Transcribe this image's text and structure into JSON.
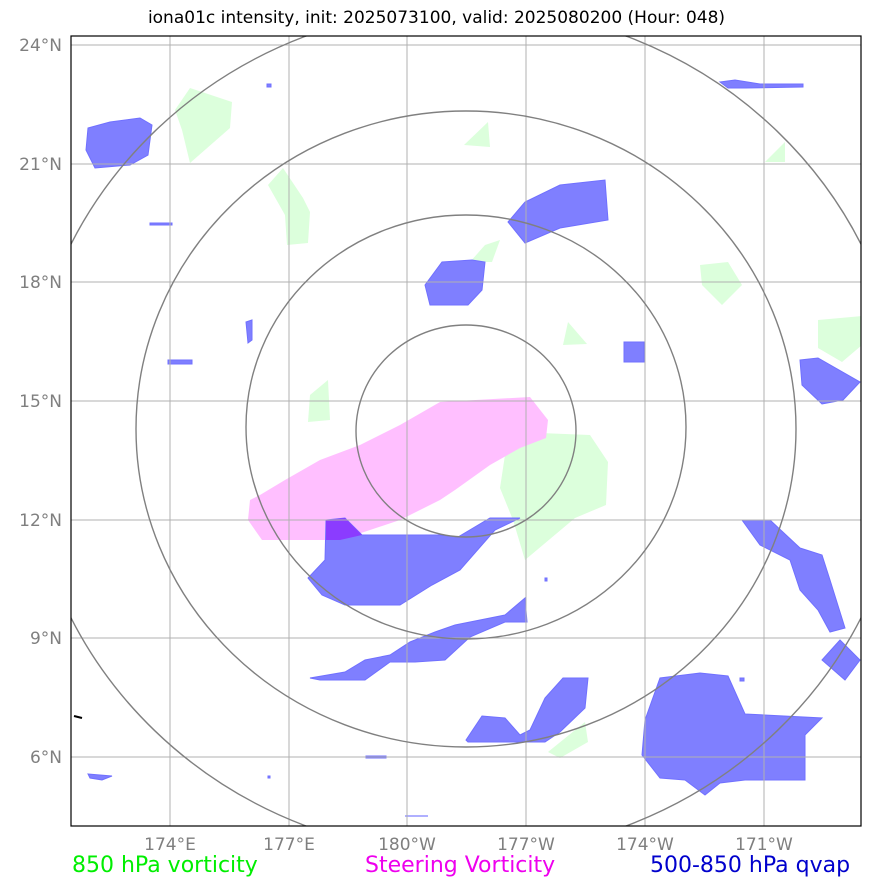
{
  "title": "iona01c intensity, init: 2025073100, valid: 2025080200 (Hour: 048)",
  "y_ticks": [
    "24°N",
    "21°N",
    "18°N",
    "15°N",
    "12°N",
    "9°N",
    "6°N"
  ],
  "x_ticks": [
    "174°E",
    "177°E",
    "180°W",
    "177°W",
    "174°W",
    "171°W"
  ],
  "legend": {
    "vort850": "850 hPa vorticity",
    "steering": "Steering Vorticity",
    "qvap": "500-850 hPa qvap"
  },
  "colors": {
    "vort850": "#dcffdc",
    "steering": "#ffbfff",
    "qvap": "#7f7fff",
    "overlap": "#8b3cff",
    "grid": "#b0b0b0",
    "rings": "#808080"
  }
}
